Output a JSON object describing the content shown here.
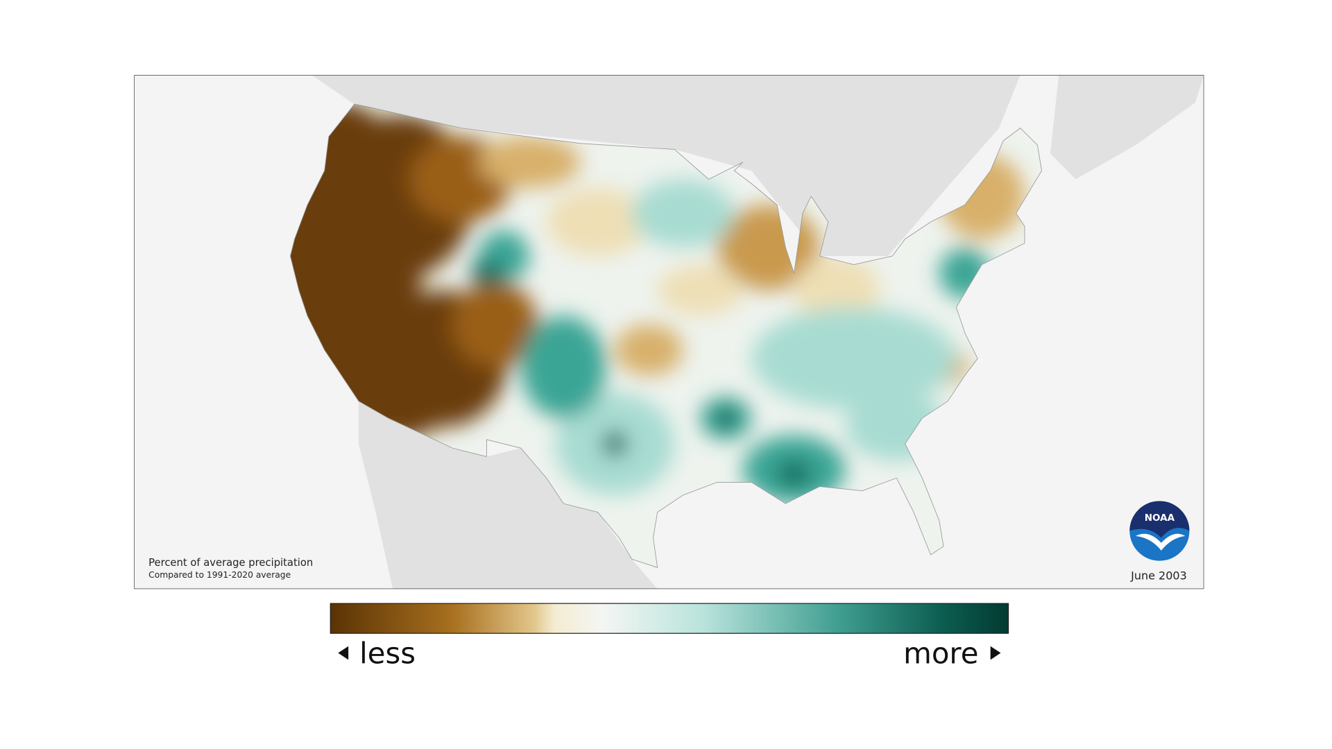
{
  "map": {
    "note_title": "Percent of average precipitation",
    "note_subtitle": "Compared to 1991-2020 average",
    "date": "June 2003",
    "logo": "NOAA",
    "legend": {
      "less": "less",
      "more": "more"
    }
  }
}
